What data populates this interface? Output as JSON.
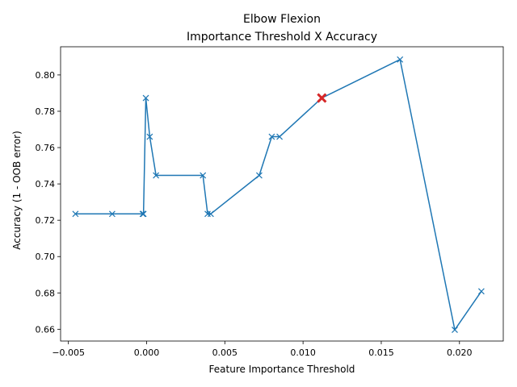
{
  "chart_data": {
    "type": "line",
    "title": "Elbow Flexion",
    "subtitle": "Importance Threshold X Accuracy",
    "xlabel": "Feature Importance Threshold",
    "ylabel": "Accuracy (1 - OOB error)",
    "xlim": [
      -0.0055,
      0.0228
    ],
    "ylim": [
      0.6535,
      0.8155
    ],
    "xticks": [
      -0.005,
      0.0,
      0.005,
      0.01,
      0.015,
      0.02
    ],
    "xtick_labels": [
      "−0.005",
      "0.000",
      "0.005",
      "0.010",
      "0.015",
      "0.020"
    ],
    "yticks": [
      0.66,
      0.68,
      0.7,
      0.72,
      0.74,
      0.76,
      0.78,
      0.8
    ],
    "ytick_labels": [
      "0.66",
      "0.68",
      "0.70",
      "0.72",
      "0.74",
      "0.76",
      "0.78",
      "0.80"
    ],
    "grid": false,
    "series": [
      {
        "marker": "x",
        "color": "#1f77b4",
        "x": [
          -0.00455,
          -0.0022,
          -0.00025,
          -0.0002,
          -5e-05,
          0.0002,
          0.0006,
          0.0036,
          0.0039,
          0.0041,
          0.0072,
          0.008,
          0.0085,
          0.0112,
          0.0162,
          0.0197,
          0.0214
        ],
        "y": [
          0.7235,
          0.7235,
          0.7235,
          0.7235,
          0.7873,
          0.766,
          0.7447,
          0.7447,
          0.7235,
          0.7235,
          0.7447,
          0.766,
          0.766,
          0.7873,
          0.8085,
          0.6597,
          0.6809
        ]
      }
    ],
    "highlight": {
      "x": 0.0112,
      "y": 0.7873,
      "color": "#d62728",
      "marker": "x"
    }
  }
}
